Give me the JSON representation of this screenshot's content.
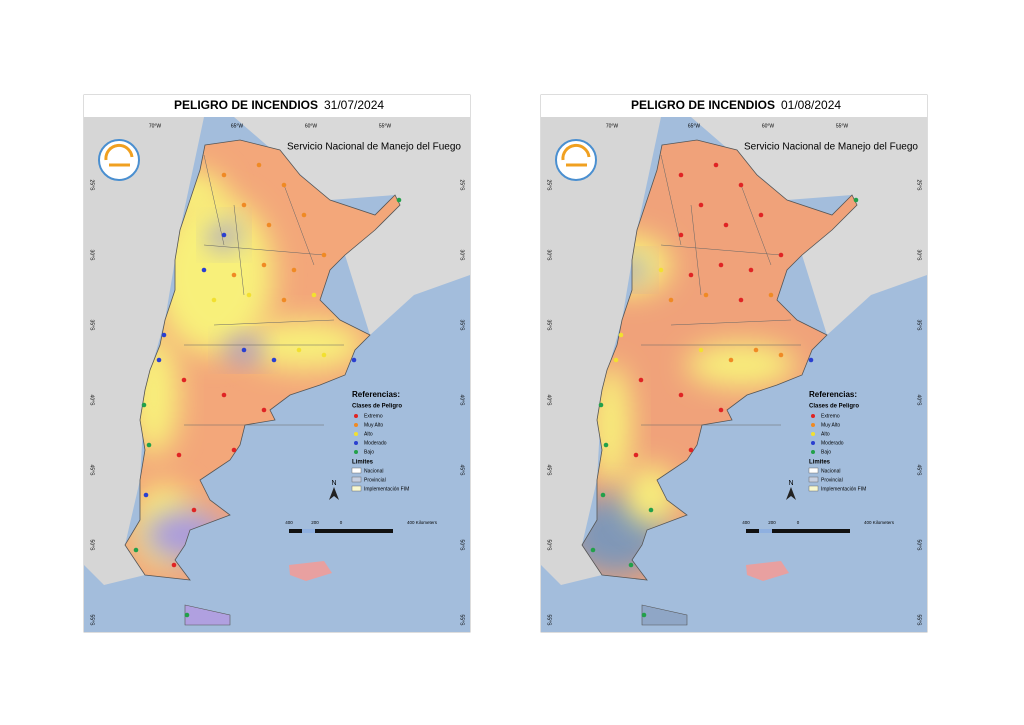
{
  "title": "PELIGRO DE INCENDIOS",
  "agency": "Servicio Nacional de Manejo del Fuego",
  "maps": [
    {
      "date": "31/07/2024"
    },
    {
      "date": "01/08/2024"
    }
  ],
  "longitudes": [
    "70°W",
    "65°W",
    "60°W",
    "55°W"
  ],
  "latitudes": [
    "25°S",
    "30°S",
    "35°S",
    "40°S",
    "45°S",
    "50°S",
    "55°S"
  ],
  "legend": {
    "title": "Referencias:",
    "classes_title": "Clases de Peligro",
    "classes": [
      {
        "label": "Extremo",
        "color": "#e02424"
      },
      {
        "label": "Muy Alto",
        "color": "#f08a24"
      },
      {
        "label": "Alto",
        "color": "#f2e030"
      },
      {
        "label": "Moderado",
        "color": "#2a3fd0"
      },
      {
        "label": "Bajo",
        "color": "#22a04a"
      }
    ],
    "limits_title": "Limites",
    "limits": [
      "Nacional",
      "Provincial",
      "Implementación FIM"
    ]
  },
  "scale": [
    "400",
    "200",
    "0",
    "400 Kilometers"
  ],
  "north": "N"
}
